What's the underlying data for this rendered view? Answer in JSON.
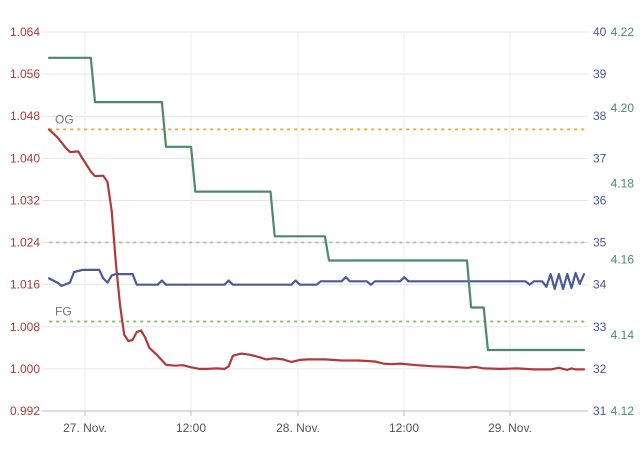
{
  "chart_data": {
    "type": "line",
    "x_ticks": [
      "27. Nov.",
      "12:00",
      "28. Nov.",
      "12:00",
      "29. Nov."
    ],
    "x_range": [
      0,
      128
    ],
    "y_left": {
      "ticks": [
        "1.064",
        "1.056",
        "1.048",
        "1.040",
        "1.032",
        "1.024",
        "1.016",
        "1.008",
        "1.000",
        "0.992"
      ],
      "range": [
        0.992,
        1.064
      ],
      "color": "#b03a3a"
    },
    "y_right_inner": {
      "ticks": [
        "40",
        "39",
        "38",
        "37",
        "36",
        "35",
        "34",
        "33",
        "32",
        "31"
      ],
      "range": [
        31,
        40
      ],
      "color": "#4a5a9a"
    },
    "y_right_outer": {
      "ticks": [
        "4.22",
        "4.20",
        "4.18",
        "4.16",
        "4.14",
        "4.12"
      ],
      "range": [
        4.12,
        4.22
      ],
      "color": "#4a8a6a"
    },
    "reference_lines": [
      {
        "label": "OG",
        "axis": "left",
        "value": 1.0455,
        "color": "#e8b04a"
      },
      {
        "label": "FG",
        "axis": "left",
        "value": 1.009,
        "color": "#8cc56a"
      },
      {
        "label": "",
        "axis": "left",
        "value": 1.024,
        "color": "#b8b8d8"
      }
    ],
    "series": [
      {
        "axis": "left",
        "color": "#b03a3a",
        "points": [
          [
            0,
            1.0455
          ],
          [
            2,
            1.044
          ],
          [
            4,
            1.042
          ],
          [
            5,
            1.0412
          ],
          [
            7,
            1.0413
          ],
          [
            8,
            1.04
          ],
          [
            10,
            1.0375
          ],
          [
            11,
            1.0366
          ],
          [
            13,
            1.0367
          ],
          [
            14,
            1.0355
          ],
          [
            15,
            1.03
          ],
          [
            16,
            1.02
          ],
          [
            17,
            1.012
          ],
          [
            18,
            1.0065
          ],
          [
            19,
            1.0053
          ],
          [
            20,
            1.0055
          ],
          [
            21,
            1.007
          ],
          [
            22,
            1.0073
          ],
          [
            23,
            1.006
          ],
          [
            24,
            1.004
          ],
          [
            26,
            1.0025
          ],
          [
            28,
            1.0008
          ],
          [
            30,
            1.0006
          ],
          [
            32,
            1.0007
          ],
          [
            34,
            1.0003
          ],
          [
            36,
            1.0
          ],
          [
            38,
            1.0
          ],
          [
            40,
            1.0001
          ],
          [
            42,
            1.0
          ],
          [
            43,
            1.0005
          ],
          [
            44,
            1.0025
          ],
          [
            46,
            1.0029
          ],
          [
            48,
            1.0027
          ],
          [
            50,
            1.0023
          ],
          [
            52,
            1.0018
          ],
          [
            54,
            1.002
          ],
          [
            56,
            1.0018
          ],
          [
            58,
            1.0013
          ],
          [
            60,
            1.0017
          ],
          [
            62,
            1.0018
          ],
          [
            66,
            1.0018
          ],
          [
            70,
            1.0016
          ],
          [
            74,
            1.0016
          ],
          [
            78,
            1.0014
          ],
          [
            80,
            1.001
          ],
          [
            82,
            1.0009
          ],
          [
            84,
            1.001
          ],
          [
            88,
            1.0007
          ],
          [
            92,
            1.0005
          ],
          [
            96,
            1.0004
          ],
          [
            100,
            1.0002
          ],
          [
            102,
            1.0004
          ],
          [
            104,
            1.0001
          ],
          [
            108,
            1.0
          ],
          [
            112,
            1.0001
          ],
          [
            116,
            0.9999
          ],
          [
            120,
            0.9999
          ],
          [
            122,
            1.0002
          ],
          [
            124,
            0.9998
          ],
          [
            125,
            1.0001
          ],
          [
            126,
            0.9999
          ],
          [
            128,
            0.9999
          ]
        ]
      },
      {
        "axis": "right_inner",
        "color": "#4a5a9a",
        "points": [
          [
            0,
            34.15
          ],
          [
            2,
            34.05
          ],
          [
            3,
            33.97
          ],
          [
            5,
            34.05
          ],
          [
            6,
            34.3
          ],
          [
            8,
            34.35
          ],
          [
            10,
            34.35
          ],
          [
            12,
            34.35
          ],
          [
            13,
            34.15
          ],
          [
            14,
            34.05
          ],
          [
            15,
            34.22
          ],
          [
            16,
            34.25
          ],
          [
            18,
            34.25
          ],
          [
            20,
            34.25
          ],
          [
            21,
            34.0
          ],
          [
            22,
            34.0
          ],
          [
            25,
            34.0
          ],
          [
            26,
            34.0
          ],
          [
            27,
            34.1
          ],
          [
            28,
            34.0
          ],
          [
            30,
            34.0
          ],
          [
            40,
            34.0
          ],
          [
            42,
            34.0
          ],
          [
            43,
            34.1
          ],
          [
            44,
            34.0
          ],
          [
            48,
            34.0
          ],
          [
            56,
            34.0
          ],
          [
            58,
            34.0
          ],
          [
            59,
            34.1
          ],
          [
            60,
            34.0
          ],
          [
            62,
            34.0
          ],
          [
            64,
            34.0
          ],
          [
            65,
            34.08
          ],
          [
            67,
            34.08
          ],
          [
            70,
            34.08
          ],
          [
            71,
            34.18
          ],
          [
            72,
            34.08
          ],
          [
            74,
            34.08
          ],
          [
            76,
            34.08
          ],
          [
            77,
            34.0
          ],
          [
            78,
            34.08
          ],
          [
            80,
            34.08
          ],
          [
            82,
            34.08
          ],
          [
            84,
            34.08
          ],
          [
            85,
            34.18
          ],
          [
            86,
            34.08
          ],
          [
            90,
            34.08
          ],
          [
            100,
            34.08
          ],
          [
            110,
            34.08
          ],
          [
            114,
            34.08
          ],
          [
            115,
            34.0
          ],
          [
            116,
            34.08
          ],
          [
            118,
            34.08
          ],
          [
            119,
            33.95
          ],
          [
            120,
            34.25
          ],
          [
            121,
            33.9
          ],
          [
            122,
            34.25
          ],
          [
            123,
            33.9
          ],
          [
            124,
            34.25
          ],
          [
            125,
            33.92
          ],
          [
            126,
            34.28
          ],
          [
            127,
            34.02
          ],
          [
            128,
            34.25
          ]
        ]
      },
      {
        "axis": "right_outer",
        "color": "#4a8a6a",
        "points": [
          [
            0,
            4.2132
          ],
          [
            10,
            4.2132
          ],
          [
            11,
            4.2015
          ],
          [
            27,
            4.2015
          ],
          [
            28,
            4.1897
          ],
          [
            34,
            4.1897
          ],
          [
            35,
            4.1779
          ],
          [
            53,
            4.1779
          ],
          [
            54,
            4.1661
          ],
          [
            66,
            4.1661
          ],
          [
            67,
            4.1597
          ],
          [
            100,
            4.1597
          ],
          [
            101,
            4.1473
          ],
          [
            104,
            4.1473
          ],
          [
            105,
            4.1361
          ],
          [
            128,
            4.1361
          ]
        ]
      }
    ]
  }
}
